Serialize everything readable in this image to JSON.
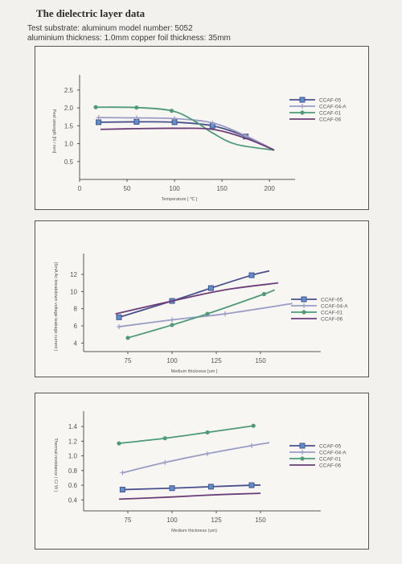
{
  "header": {
    "title": "The dielectric layer data",
    "line1": "Test substrate: aluminum model number: 5052",
    "line2": "aluminium thickness: 1.0mm copper foil thickness: 35mm"
  },
  "colors": {
    "CCAF-05": "#4a4f8c",
    "CCAF-04-A": "#9a9cc6",
    "CCAF-01": "#4f9a78",
    "CCAF-06": "#6b3e78"
  },
  "chart_data": [
    {
      "type": "line",
      "xlabel": "Temperature [ ℃ ]",
      "ylabel": "Peel strength [N / mm]",
      "xlim": [
        0,
        210
      ],
      "ylim": [
        0,
        2.7
      ],
      "xticks": [
        "0",
        "50",
        "100",
        "150",
        "200"
      ],
      "yticks": [
        "0.5",
        "1.0",
        "1.5",
        "2.0",
        "2.5"
      ],
      "legend_position": "right",
      "series": [
        {
          "name": "CCAF-05",
          "marker": "square",
          "x": [
            20,
            60,
            100,
            140,
            175,
            205
          ],
          "y": [
            1.6,
            1.61,
            1.6,
            1.5,
            1.2,
            0.82
          ],
          "markers_x": [
            20,
            60,
            100,
            140,
            175
          ],
          "markers_y": [
            1.6,
            1.61,
            1.6,
            1.5,
            1.2
          ]
        },
        {
          "name": "CCAF-04-A",
          "marker": "plus",
          "x": [
            20,
            60,
            100,
            140,
            175,
            205
          ],
          "y": [
            1.73,
            1.72,
            1.7,
            1.58,
            1.22,
            0.82
          ],
          "markers_x": [
            20,
            60,
            100,
            140,
            175
          ],
          "markers_y": [
            1.73,
            1.72,
            1.7,
            1.58,
            1.22
          ]
        },
        {
          "name": "CCAF-01",
          "marker": "circle",
          "x": [
            17,
            60,
            97,
            120,
            140,
            165,
            205
          ],
          "y": [
            2.02,
            2.01,
            1.92,
            1.65,
            1.3,
            0.98,
            0.82
          ],
          "markers_x": [
            17,
            60,
            97
          ],
          "markers_y": [
            2.02,
            2.01,
            1.92
          ]
        },
        {
          "name": "CCAF-06",
          "marker": "none",
          "x": [
            22,
            60,
            100,
            140,
            175,
            205
          ],
          "y": [
            1.4,
            1.42,
            1.43,
            1.4,
            1.15,
            0.82
          ]
        }
      ]
    },
    {
      "type": "line",
      "xlabel": "Medium thickness [um ]",
      "ylabel": "(5mA Ac breakdown voltage leakage current )",
      "xlim": [
        50,
        175
      ],
      "ylim": [
        3,
        13.5
      ],
      "xticks": [
        "75",
        "100",
        "125",
        "150"
      ],
      "yticks": [
        "4",
        "6",
        "8",
        "10",
        "12"
      ],
      "legend_position": "right",
      "series": [
        {
          "name": "CCAF-05",
          "marker": "square",
          "x": [
            70,
            100,
            122,
            145,
            155
          ],
          "y": [
            7.0,
            8.9,
            10.4,
            11.9,
            12.4
          ],
          "markers_x": [
            70,
            100,
            122,
            145
          ],
          "markers_y": [
            7.0,
            8.9,
            10.4,
            11.9
          ]
        },
        {
          "name": "CCAF-04-A",
          "marker": "plus",
          "x": [
            70,
            100,
            130,
            168
          ],
          "y": [
            5.9,
            6.7,
            7.4,
            8.6
          ],
          "markers_x": [
            70,
            100,
            130
          ],
          "markers_y": [
            5.9,
            6.7,
            7.4
          ]
        },
        {
          "name": "CCAF-01",
          "marker": "circle",
          "x": [
            75,
            100,
            120,
            152,
            158
          ],
          "y": [
            4.6,
            6.1,
            7.4,
            9.7,
            10.2
          ],
          "markers_x": [
            75,
            100,
            120,
            152
          ],
          "markers_y": [
            4.6,
            6.1,
            7.4,
            9.7
          ]
        },
        {
          "name": "CCAF-06",
          "marker": "none",
          "x": [
            68,
            100,
            130,
            160
          ],
          "y": [
            7.4,
            8.9,
            10.2,
            11.0
          ]
        }
      ]
    },
    {
      "type": "line",
      "xlabel": "Medium thickness (um)",
      "ylabel": "Thermal resistance ( C/ W )",
      "xlim": [
        50,
        175
      ],
      "ylim": [
        0.25,
        1.5
      ],
      "xticks": [
        "75",
        "100",
        "125",
        "150"
      ],
      "yticks": [
        "0.4",
        "0.6",
        "0.8",
        "1.0",
        "1.2",
        "1.4"
      ],
      "legend_position": "right",
      "series": [
        {
          "name": "CCAF-05",
          "marker": "square",
          "x": [
            72,
            100,
            122,
            145,
            150
          ],
          "y": [
            0.54,
            0.56,
            0.58,
            0.6,
            0.6
          ],
          "markers_x": [
            72,
            100,
            122,
            145
          ],
          "markers_y": [
            0.54,
            0.56,
            0.58,
            0.6
          ]
        },
        {
          "name": "CCAF-04-A",
          "marker": "plus",
          "x": [
            72,
            96,
            120,
            145,
            155
          ],
          "y": [
            0.77,
            0.91,
            1.03,
            1.14,
            1.18
          ],
          "markers_x": [
            72,
            96,
            120,
            145
          ],
          "markers_y": [
            0.77,
            0.91,
            1.03,
            1.14
          ]
        },
        {
          "name": "CCAF-01",
          "marker": "circle",
          "x": [
            70,
            96,
            120,
            146
          ],
          "y": [
            1.17,
            1.24,
            1.32,
            1.41
          ],
          "markers_x": [
            70,
            96,
            120,
            146
          ],
          "markers_y": [
            1.17,
            1.24,
            1.32,
            1.41
          ]
        },
        {
          "name": "CCAF-06",
          "marker": "none",
          "x": [
            70,
            100,
            125,
            150
          ],
          "y": [
            0.41,
            0.44,
            0.47,
            0.49
          ]
        }
      ]
    }
  ]
}
